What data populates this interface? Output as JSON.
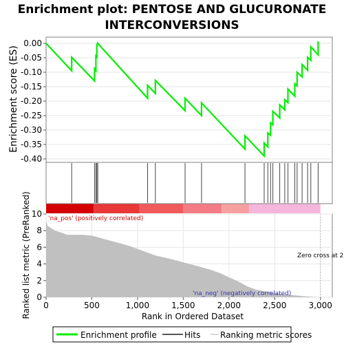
{
  "chart_data": {
    "type": "line",
    "title_lines": [
      "Enrichment plot: PENTOSE AND GLUCURONATE",
      "INTERCONVERSIONS"
    ],
    "es_panel": {
      "ylabel": "Enrichment score (ES)",
      "ylim": [
        -0.4,
        0.0
      ],
      "yticks": [
        "0.00",
        "-0.05",
        "-0.10",
        "-0.15",
        "-0.20",
        "-0.25",
        "-0.30",
        "-0.35",
        "-0.40"
      ],
      "ytick_values": [
        0.0,
        -0.05,
        -0.1,
        -0.15,
        -0.2,
        -0.25,
        -0.3,
        -0.35,
        -0.4
      ],
      "series": [
        {
          "name": "Enrichment profile",
          "color": "#00ee00",
          "x": [
            0,
            280,
            280,
            530,
            530,
            545,
            545,
            555,
            555,
            565,
            565,
            1110,
            1110,
            1195,
            1195,
            1520,
            1520,
            1700,
            1700,
            2175,
            2175,
            2385,
            2385,
            2425,
            2425,
            2455,
            2455,
            2480,
            2480,
            2555,
            2555,
            2610,
            2610,
            2645,
            2645,
            2720,
            2720,
            2745,
            2745,
            2800,
            2800,
            2860,
            2860,
            2895,
            2895,
            2975,
            2975
          ],
          "y": [
            0.0,
            -0.095,
            -0.048,
            -0.13,
            -0.088,
            -0.095,
            -0.043,
            -0.047,
            -0.003,
            -0.002,
            0.0,
            -0.19,
            -0.145,
            -0.173,
            -0.128,
            -0.233,
            -0.19,
            -0.25,
            -0.206,
            -0.366,
            -0.32,
            -0.39,
            -0.345,
            -0.358,
            -0.31,
            -0.318,
            -0.275,
            -0.282,
            -0.235,
            -0.258,
            -0.213,
            -0.23,
            -0.195,
            -0.205,
            -0.158,
            -0.183,
            -0.14,
            -0.147,
            -0.1,
            -0.116,
            -0.073,
            -0.093,
            -0.048,
            -0.059,
            -0.012,
            -0.04,
            0.007
          ]
        }
      ]
    },
    "hits_panel": {
      "name": "Hits",
      "hit_positions": [
        280,
        530,
        545,
        555,
        565,
        1110,
        1195,
        1520,
        1700,
        2175,
        2385,
        2425,
        2455,
        2480,
        2555,
        2610,
        2645,
        2720,
        2745,
        2800,
        2860,
        2895,
        2975
      ]
    },
    "colorbar": {
      "segments": [
        {
          "from": 0,
          "to": 520,
          "color": "#d40000"
        },
        {
          "from": 520,
          "to": 1020,
          "color": "#e83838"
        },
        {
          "from": 1020,
          "to": 1500,
          "color": "#f05a5a"
        },
        {
          "from": 1500,
          "to": 1920,
          "color": "#f47c84"
        },
        {
          "from": 1920,
          "to": 2220,
          "color": "#f7a0a0"
        },
        {
          "from": 2220,
          "to": 3000,
          "color": "#f5b6dc"
        }
      ]
    },
    "metric_panel": {
      "ylabel": "Ranked list metric (PreRanked)",
      "xlabel": "Rank in Ordered Dataset",
      "ylim": [
        0,
        10
      ],
      "yticks": [
        "0",
        "2",
        "4",
        "6",
        "8",
        "10"
      ],
      "ytick_values": [
        0,
        2,
        4,
        6,
        8,
        10
      ],
      "xlim": [
        0,
        3130
      ],
      "xticks": [
        "0",
        "500",
        "1,000",
        "1,500",
        "2,000",
        "2,500",
        "3,000"
      ],
      "xtick_values": [
        0,
        500,
        1000,
        1500,
        2000,
        2500,
        3000
      ],
      "name": "Ranking metric scores",
      "fill_color": "#c0c0c0",
      "x": [
        0,
        15,
        40,
        100,
        180,
        230,
        300,
        400,
        500,
        600,
        700,
        800,
        900,
        1000,
        1100,
        1200,
        1300,
        1400,
        1500,
        1600,
        1700,
        1800,
        1900,
        2000,
        2100,
        2150,
        2200,
        2300,
        2400,
        2500,
        2600,
        2700,
        2800,
        2900,
        2950,
        3000
      ],
      "values": [
        9.3,
        8.6,
        8.4,
        8.0,
        7.7,
        7.5,
        7.5,
        7.5,
        7.4,
        7.1,
        6.8,
        6.5,
        6.2,
        5.8,
        5.4,
        5.0,
        4.75,
        4.5,
        4.2,
        3.9,
        3.6,
        3.3,
        2.9,
        2.4,
        1.9,
        1.6,
        1.3,
        0.9,
        0.7,
        0.5,
        0.35,
        0.25,
        0.15,
        0.07,
        0.03,
        0.0
      ],
      "pos_label": "'na_pos' (positively correlated)",
      "neg_label": "'na_neg' (negatively correlated)",
      "zero_cross_label": "Zero cross at 2",
      "zero_cross_x": 3000
    },
    "legend": [
      {
        "label": "Enrichment profile",
        "color": "#00ee00"
      },
      {
        "label": "Hits",
        "color": "#555555"
      },
      {
        "label": "Ranking metric scores",
        "color": "#d8d8d8"
      }
    ]
  }
}
